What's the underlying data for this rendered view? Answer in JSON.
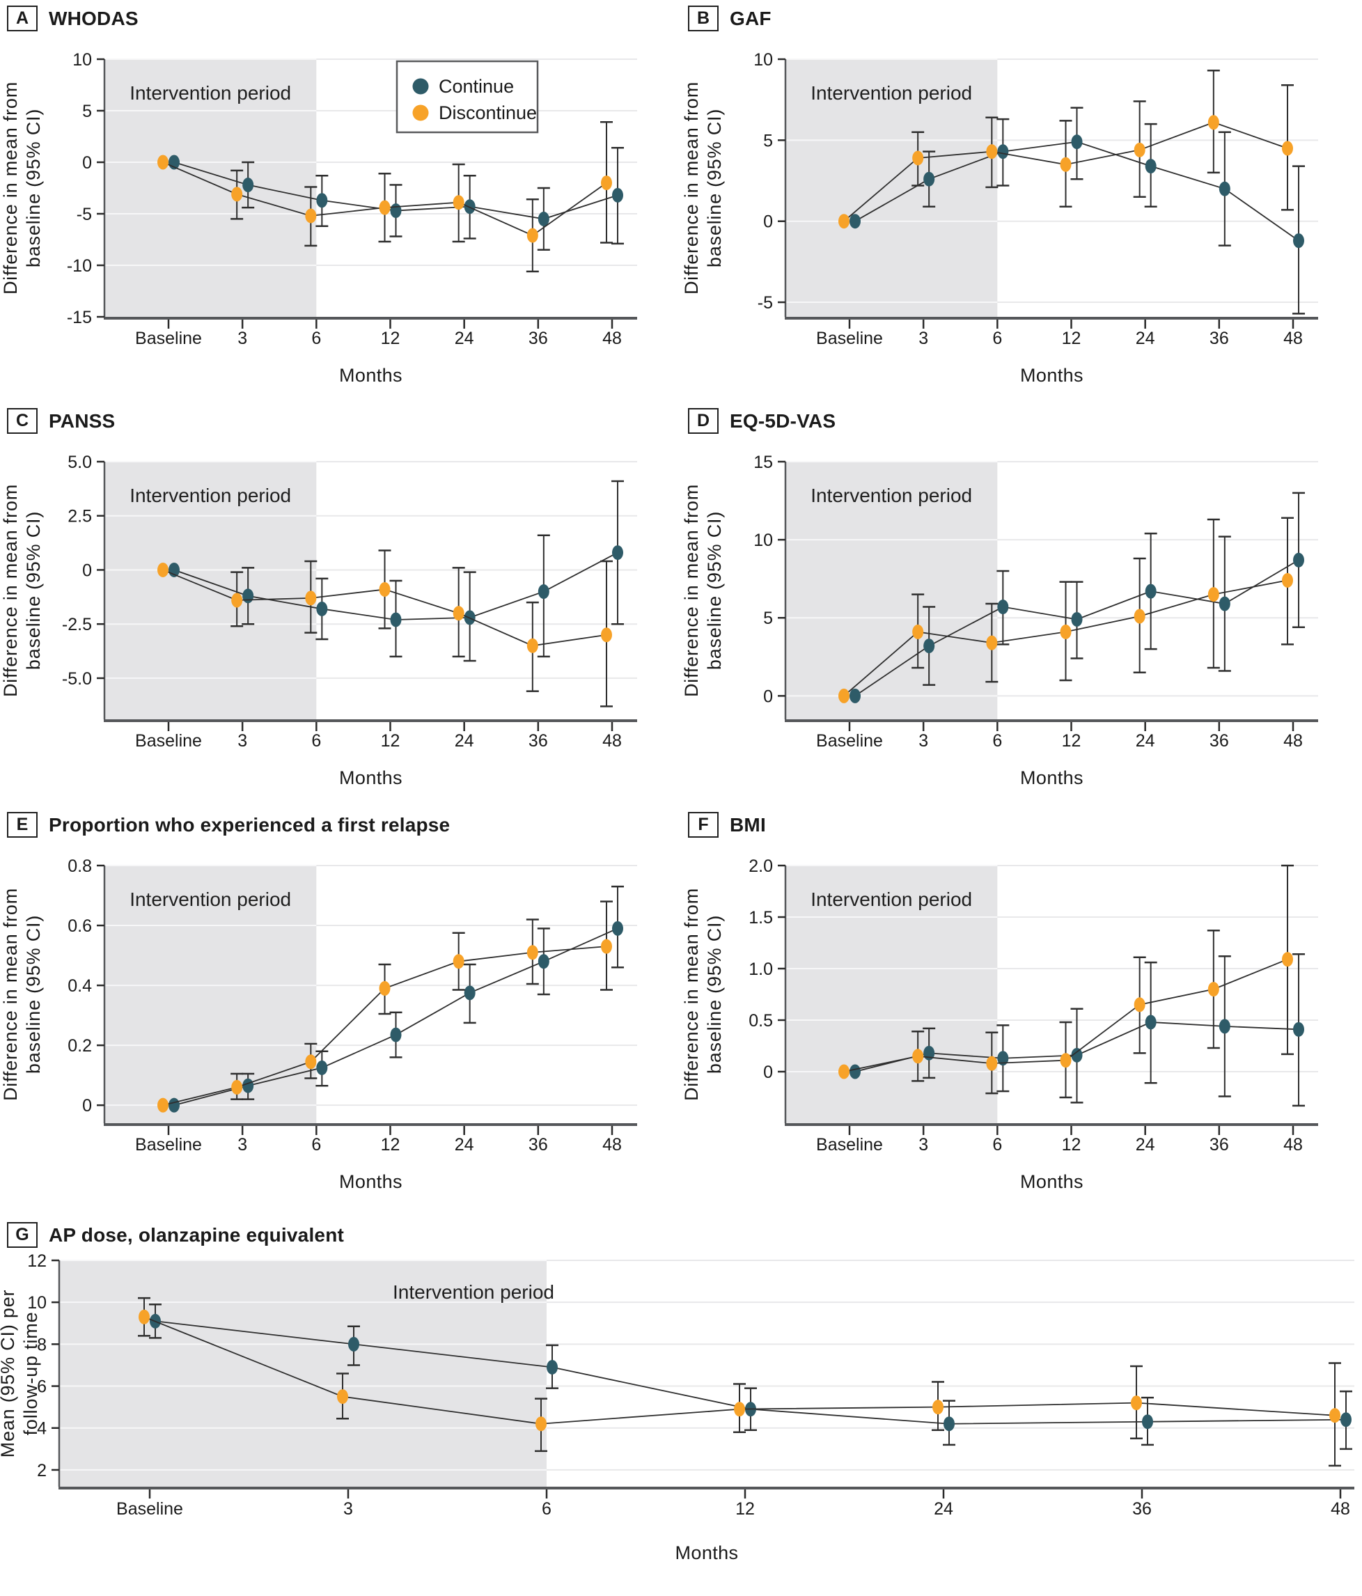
{
  "figure": {
    "intervention_label": "Intervention period",
    "months_label": "Months",
    "legend": {
      "items": [
        {
          "label": "Continue",
          "color_key": "continue"
        },
        {
          "label": "Discontinue",
          "color_key": "discontinue"
        }
      ]
    }
  },
  "colors": {
    "continue": "#2e5b68",
    "discontinue": "#f7a228",
    "errbar": "#2e2e2e",
    "series_line": "#2e2e2e",
    "axis": "#55575a",
    "grid": "#e8e8ea",
    "grid_on_shade": "#f7f7f8",
    "shade": "#e4e4e6",
    "legend_border": "#58595b",
    "text": "#1a1a1a"
  },
  "chart_data": [
    {
      "id": "A",
      "title": "WHODAS",
      "type": "line",
      "wide": false,
      "show_legend": true,
      "x_categories": [
        "Baseline",
        "3",
        "6",
        "12",
        "24",
        "36",
        "48"
      ],
      "xlabel": "Months",
      "ylabel_lines": [
        "Difference in mean from",
        "baseline (95% CI)"
      ],
      "ylim": [
        -15,
        10
      ],
      "yticks": [
        {
          "v": 10,
          "label": "10"
        },
        {
          "v": 5,
          "label": "5"
        },
        {
          "v": 0,
          "label": "0"
        },
        {
          "v": -5,
          "label": "-5"
        },
        {
          "v": -10,
          "label": "-10"
        },
        {
          "v": -15,
          "label": "-15"
        }
      ],
      "intervention_end_index": 2,
      "intervention_label_frac": 0.5,
      "series": [
        {
          "name": "Continue",
          "color_key": "continue",
          "dodge": 8,
          "values": [
            0,
            -2.2,
            -3.7,
            -4.7,
            -4.3,
            -5.5,
            -3.2
          ],
          "ci_low": [
            null,
            -4.4,
            -6.2,
            -7.2,
            -7.4,
            -8.5,
            -7.9
          ],
          "ci_high": [
            null,
            0.0,
            -1.3,
            -2.2,
            -1.3,
            -2.5,
            1.4
          ]
        },
        {
          "name": "Discontinue",
          "color_key": "discontinue",
          "dodge": -8,
          "values": [
            0,
            -3.1,
            -5.2,
            -4.4,
            -3.9,
            -7.1,
            -2.0
          ],
          "ci_low": [
            null,
            -5.5,
            -8.1,
            -7.7,
            -7.7,
            -10.6,
            -7.8
          ],
          "ci_high": [
            null,
            -0.8,
            -2.4,
            -1.1,
            -0.2,
            -3.6,
            3.9
          ]
        }
      ]
    },
    {
      "id": "B",
      "title": "GAF",
      "type": "line",
      "wide": false,
      "show_legend": false,
      "x_categories": [
        "Baseline",
        "3",
        "6",
        "12",
        "24",
        "36",
        "48"
      ],
      "xlabel": "Months",
      "ylabel_lines": [
        "Difference in mean from",
        "baseline (95% CI)"
      ],
      "ylim": [
        -5.9,
        10
      ],
      "yticks": [
        {
          "v": 10,
          "label": "10"
        },
        {
          "v": 5,
          "label": "5"
        },
        {
          "v": 0,
          "label": "0"
        },
        {
          "v": -5,
          "label": "-5"
        }
      ],
      "intervention_end_index": 2,
      "intervention_label_frac": 0.5,
      "series": [
        {
          "name": "Continue",
          "color_key": "continue",
          "dodge": 8,
          "values": [
            0,
            2.6,
            4.3,
            4.9,
            3.4,
            2.0,
            -1.2
          ],
          "ci_low": [
            null,
            0.9,
            2.2,
            2.6,
            0.9,
            -1.5,
            -5.7
          ],
          "ci_high": [
            null,
            4.3,
            6.3,
            7.0,
            6.0,
            5.5,
            3.4
          ]
        },
        {
          "name": "Discontinue",
          "color_key": "discontinue",
          "dodge": -8,
          "values": [
            0,
            3.9,
            4.3,
            3.5,
            4.4,
            6.1,
            4.5
          ],
          "ci_low": [
            null,
            2.2,
            2.1,
            0.9,
            1.5,
            3.0,
            0.7
          ],
          "ci_high": [
            null,
            5.5,
            6.4,
            6.2,
            7.4,
            9.3,
            8.4
          ]
        }
      ]
    },
    {
      "id": "C",
      "title": "PANSS",
      "type": "line",
      "wide": false,
      "show_legend": false,
      "x_categories": [
        "Baseline",
        "3",
        "6",
        "12",
        "24",
        "36",
        "48"
      ],
      "xlabel": "Months",
      "ylabel_lines": [
        "Difference in mean from",
        "baseline (95% CI)"
      ],
      "ylim": [
        -6.9,
        5
      ],
      "yticks": [
        {
          "v": 5,
          "label": "5.0"
        },
        {
          "v": 2.5,
          "label": "2.5"
        },
        {
          "v": 0,
          "label": "0"
        },
        {
          "v": -2.5,
          "label": "-2.5"
        },
        {
          "v": -5,
          "label": "-5.0"
        }
      ],
      "intervention_end_index": 2,
      "intervention_label_frac": 0.5,
      "series": [
        {
          "name": "Continue",
          "color_key": "continue",
          "dodge": 8,
          "values": [
            0,
            -1.2,
            -1.8,
            -2.3,
            -2.2,
            -1.0,
            0.8
          ],
          "ci_low": [
            null,
            -2.5,
            -3.2,
            -4.0,
            -4.2,
            -4.0,
            -2.5
          ],
          "ci_high": [
            null,
            0.1,
            -0.4,
            -0.5,
            -0.1,
            1.6,
            4.1
          ]
        },
        {
          "name": "Discontinue",
          "color_key": "discontinue",
          "dodge": -8,
          "values": [
            0,
            -1.4,
            -1.3,
            -0.9,
            -2.0,
            -3.5,
            -3.0
          ],
          "ci_low": [
            null,
            -2.6,
            -2.9,
            -2.7,
            -4.0,
            -5.6,
            -6.3
          ],
          "ci_high": [
            null,
            -0.1,
            0.4,
            0.9,
            0.1,
            -1.5,
            0.4
          ]
        }
      ]
    },
    {
      "id": "D",
      "title": "EQ-5D-VAS",
      "type": "line",
      "wide": false,
      "show_legend": false,
      "x_categories": [
        "Baseline",
        "3",
        "6",
        "12",
        "24",
        "36",
        "48"
      ],
      "xlabel": "Months",
      "ylabel_lines": [
        "Difference in mean from",
        "baseline (95% CI)"
      ],
      "ylim": [
        -1.5,
        15
      ],
      "yticks": [
        {
          "v": 15,
          "label": "15"
        },
        {
          "v": 10,
          "label": "10"
        },
        {
          "v": 5,
          "label": "5"
        },
        {
          "v": 0,
          "label": "0"
        }
      ],
      "intervention_end_index": 2,
      "intervention_label_frac": 0.5,
      "series": [
        {
          "name": "Continue",
          "color_key": "continue",
          "dodge": 8,
          "values": [
            0,
            3.2,
            5.7,
            4.9,
            6.7,
            5.9,
            8.7
          ],
          "ci_low": [
            null,
            0.7,
            3.3,
            2.4,
            3.0,
            1.6,
            4.4
          ],
          "ci_high": [
            null,
            5.7,
            8.0,
            7.3,
            10.4,
            10.2,
            13.0
          ]
        },
        {
          "name": "Discontinue",
          "color_key": "discontinue",
          "dodge": -8,
          "values": [
            0,
            4.1,
            3.4,
            4.1,
            5.1,
            6.5,
            7.4
          ],
          "ci_low": [
            null,
            1.8,
            0.9,
            1.0,
            1.5,
            1.8,
            3.3
          ],
          "ci_high": [
            null,
            6.5,
            5.9,
            7.3,
            8.8,
            11.3,
            11.4
          ]
        }
      ]
    },
    {
      "id": "E",
      "title": "Proportion who experienced a first relapse",
      "type": "line",
      "wide": false,
      "show_legend": false,
      "x_categories": [
        "Baseline",
        "3",
        "6",
        "12",
        "24",
        "36",
        "48"
      ],
      "xlabel": "Months",
      "ylabel_lines": [
        "Difference in mean from",
        "baseline (95% CI)"
      ],
      "ylim": [
        -0.06,
        0.8
      ],
      "yticks": [
        {
          "v": 0.8,
          "label": "0.8"
        },
        {
          "v": 0.6,
          "label": "0.6"
        },
        {
          "v": 0.4,
          "label": "0.4"
        },
        {
          "v": 0.2,
          "label": "0.2"
        },
        {
          "v": 0,
          "label": "0"
        }
      ],
      "intervention_end_index": 2,
      "intervention_label_frac": 0.5,
      "series": [
        {
          "name": "Continue",
          "color_key": "continue",
          "dodge": 8,
          "values": [
            0,
            0.065,
            0.125,
            0.235,
            0.375,
            0.48,
            0.59
          ],
          "ci_low": [
            null,
            0.02,
            0.065,
            0.16,
            0.275,
            0.37,
            0.46
          ],
          "ci_high": [
            null,
            0.105,
            0.18,
            0.31,
            0.47,
            0.59,
            0.73
          ]
        },
        {
          "name": "Discontinue",
          "color_key": "discontinue",
          "dodge": -8,
          "values": [
            0,
            0.06,
            0.145,
            0.39,
            0.48,
            0.51,
            0.53
          ],
          "ci_low": [
            null,
            0.02,
            0.09,
            0.305,
            0.385,
            0.405,
            0.385
          ],
          "ci_high": [
            null,
            0.105,
            0.205,
            0.47,
            0.575,
            0.62,
            0.68
          ]
        }
      ]
    },
    {
      "id": "F",
      "title": "BMI",
      "type": "line",
      "wide": false,
      "show_legend": false,
      "x_categories": [
        "Baseline",
        "3",
        "6",
        "12",
        "24",
        "36",
        "48"
      ],
      "xlabel": "Months",
      "ylabel_lines": [
        "Difference in mean from",
        "baseline (95% CI)"
      ],
      "ylim": [
        -0.5,
        2.0
      ],
      "yticks": [
        {
          "v": 2.0,
          "label": "2.0"
        },
        {
          "v": 1.5,
          "label": "1.5"
        },
        {
          "v": 1.0,
          "label": "1.0"
        },
        {
          "v": 0.5,
          "label": "0.5"
        },
        {
          "v": 0,
          "label": "0"
        }
      ],
      "intervention_end_index": 2,
      "intervention_label_frac": 0.5,
      "series": [
        {
          "name": "Continue",
          "color_key": "continue",
          "dodge": 8,
          "values": [
            0,
            0.18,
            0.13,
            0.16,
            0.48,
            0.44,
            0.41
          ],
          "ci_low": [
            null,
            -0.06,
            -0.19,
            -0.3,
            -0.11,
            -0.24,
            -0.33
          ],
          "ci_high": [
            null,
            0.42,
            0.45,
            0.61,
            1.06,
            1.12,
            1.14
          ]
        },
        {
          "name": "Discontinue",
          "color_key": "discontinue",
          "dodge": -8,
          "values": [
            0,
            0.15,
            0.08,
            0.11,
            0.65,
            0.8,
            1.09
          ],
          "ci_low": [
            null,
            -0.09,
            -0.21,
            -0.25,
            0.18,
            0.23,
            0.17
          ],
          "ci_high": [
            null,
            0.39,
            0.38,
            0.48,
            1.11,
            1.37,
            2.0
          ]
        }
      ]
    },
    {
      "id": "G",
      "title": "AP dose, olanzapine equivalent",
      "type": "line",
      "wide": true,
      "show_legend": false,
      "x_categories": [
        "Baseline",
        "3",
        "6",
        "12",
        "24",
        "36",
        "48"
      ],
      "xlabel": "Months",
      "ylabel_lines": [
        "Mean (95% CI) per",
        "follow-up time"
      ],
      "ylim": [
        1.2,
        12
      ],
      "yticks": [
        {
          "v": 12,
          "label": "12"
        },
        {
          "v": 10,
          "label": "10"
        },
        {
          "v": 8,
          "label": "8"
        },
        {
          "v": 6,
          "label": "6"
        },
        {
          "v": 4,
          "label": "4"
        },
        {
          "v": 2,
          "label": "2"
        }
      ],
      "intervention_end_index": 2,
      "intervention_label_frac": 0.85,
      "series": [
        {
          "name": "Continue",
          "color_key": "continue",
          "dodge": 8,
          "values": [
            9.1,
            8.0,
            6.9,
            4.9,
            4.2,
            4.3,
            4.4
          ],
          "ci_low": [
            8.3,
            7.0,
            5.9,
            3.9,
            3.2,
            3.2,
            3.0
          ],
          "ci_high": [
            9.9,
            8.85,
            7.95,
            5.9,
            5.3,
            5.45,
            5.75
          ]
        },
        {
          "name": "Discontinue",
          "color_key": "discontinue",
          "dodge": -8,
          "values": [
            9.3,
            5.5,
            4.2,
            4.9,
            5.0,
            5.2,
            4.6
          ],
          "ci_low": [
            8.4,
            4.45,
            2.9,
            3.8,
            3.9,
            3.5,
            2.2
          ],
          "ci_high": [
            10.2,
            6.6,
            5.4,
            6.1,
            6.2,
            6.95,
            7.1
          ]
        }
      ]
    }
  ]
}
